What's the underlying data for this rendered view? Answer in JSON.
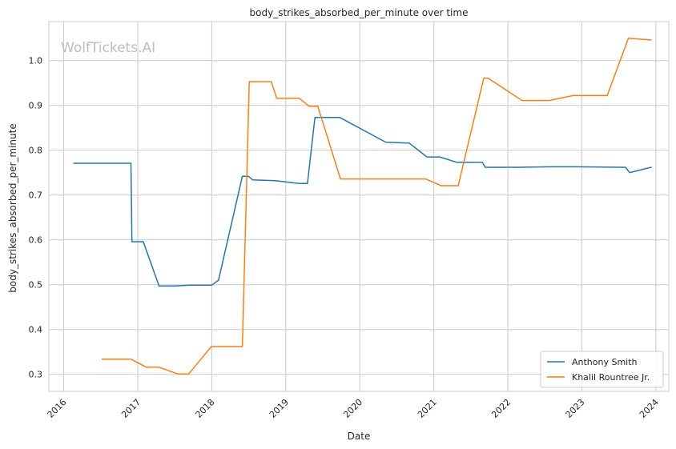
{
  "chart_data": {
    "type": "line",
    "title": "body_strikes_absorbed_per_minute over time",
    "xlabel": "Date",
    "ylabel": "body_strikes_absorbed_per_minute",
    "watermark": "WolfTickets.AI",
    "xlim": [
      "2015-10-20",
      "2024-03-05"
    ],
    "ylim": [
      0.262,
      1.087
    ],
    "x_ticks": [
      "2016-01-01",
      "2017-01-01",
      "2018-01-01",
      "2019-01-01",
      "2020-01-01",
      "2021-01-01",
      "2022-01-01",
      "2023-01-01",
      "2024-01-01"
    ],
    "x_tick_labels": [
      "2016",
      "2017",
      "2018",
      "2019",
      "2020",
      "2021",
      "2022",
      "2023",
      "2024"
    ],
    "y_ticks": [
      0.3,
      0.4,
      0.5,
      0.6,
      0.7,
      0.8,
      0.9,
      1.0
    ],
    "y_tick_labels": [
      "0.3",
      "0.4",
      "0.5",
      "0.6",
      "0.7",
      "0.8",
      "0.9",
      "1.0"
    ],
    "grid": true,
    "legend_position": "bottom-right",
    "series": [
      {
        "name": "Anthony Smith",
        "color": "#1f77b4",
        "points": [
          [
            "2016-02-20",
            0.771
          ],
          [
            "2016-11-28",
            0.771
          ],
          [
            "2016-12-03",
            0.596
          ],
          [
            "2017-01-28",
            0.596
          ],
          [
            "2017-04-16",
            0.497
          ],
          [
            "2017-07-01",
            0.497
          ],
          [
            "2017-09-15",
            0.499
          ],
          [
            "2017-12-31",
            0.499
          ],
          [
            "2018-02-03",
            0.51
          ],
          [
            "2018-06-01",
            0.742
          ],
          [
            "2018-06-30",
            0.742
          ],
          [
            "2018-07-22",
            0.734
          ],
          [
            "2018-11-10",
            0.732
          ],
          [
            "2019-03-09",
            0.726
          ],
          [
            "2019-04-18",
            0.726
          ],
          [
            "2019-05-25",
            0.873
          ],
          [
            "2019-09-25",
            0.873
          ],
          [
            "2020-05-08",
            0.818
          ],
          [
            "2020-09-01",
            0.816
          ],
          [
            "2020-11-28",
            0.785
          ],
          [
            "2021-01-30",
            0.785
          ],
          [
            "2021-04-24",
            0.773
          ],
          [
            "2021-08-28",
            0.773
          ],
          [
            "2021-09-11",
            0.762
          ],
          [
            "2022-02-20",
            0.762
          ],
          [
            "2022-07-30",
            0.763
          ],
          [
            "2022-12-03",
            0.763
          ],
          [
            "2023-08-04",
            0.762
          ],
          [
            "2023-08-25",
            0.75
          ],
          [
            "2023-12-09",
            0.762
          ]
        ]
      },
      {
        "name": "Khalil Rountree Jr.",
        "color": "#ff7f0e",
        "points": [
          [
            "2016-07-08",
            0.334
          ],
          [
            "2016-11-28",
            0.334
          ],
          [
            "2017-02-12",
            0.316
          ],
          [
            "2017-04-16",
            0.316
          ],
          [
            "2017-07-16",
            0.301
          ],
          [
            "2017-09-09",
            0.301
          ],
          [
            "2017-12-30",
            0.362
          ],
          [
            "2018-06-01",
            0.362
          ],
          [
            "2018-07-05",
            0.953
          ],
          [
            "2018-10-22",
            0.953
          ],
          [
            "2018-11-17",
            0.916
          ],
          [
            "2019-03-09",
            0.916
          ],
          [
            "2019-04-27",
            0.898
          ],
          [
            "2019-06-08",
            0.898
          ],
          [
            "2019-09-28",
            0.736
          ],
          [
            "2020-11-21",
            0.736
          ],
          [
            "2021-02-06",
            0.721
          ],
          [
            "2021-05-01",
            0.721
          ],
          [
            "2021-09-04",
            0.961
          ],
          [
            "2021-09-25",
            0.961
          ],
          [
            "2022-03-12",
            0.911
          ],
          [
            "2022-07-23",
            0.911
          ],
          [
            "2022-11-19",
            0.922
          ],
          [
            "2023-05-06",
            0.922
          ],
          [
            "2023-08-19",
            1.05
          ],
          [
            "2023-12-09",
            1.046
          ]
        ]
      }
    ]
  }
}
